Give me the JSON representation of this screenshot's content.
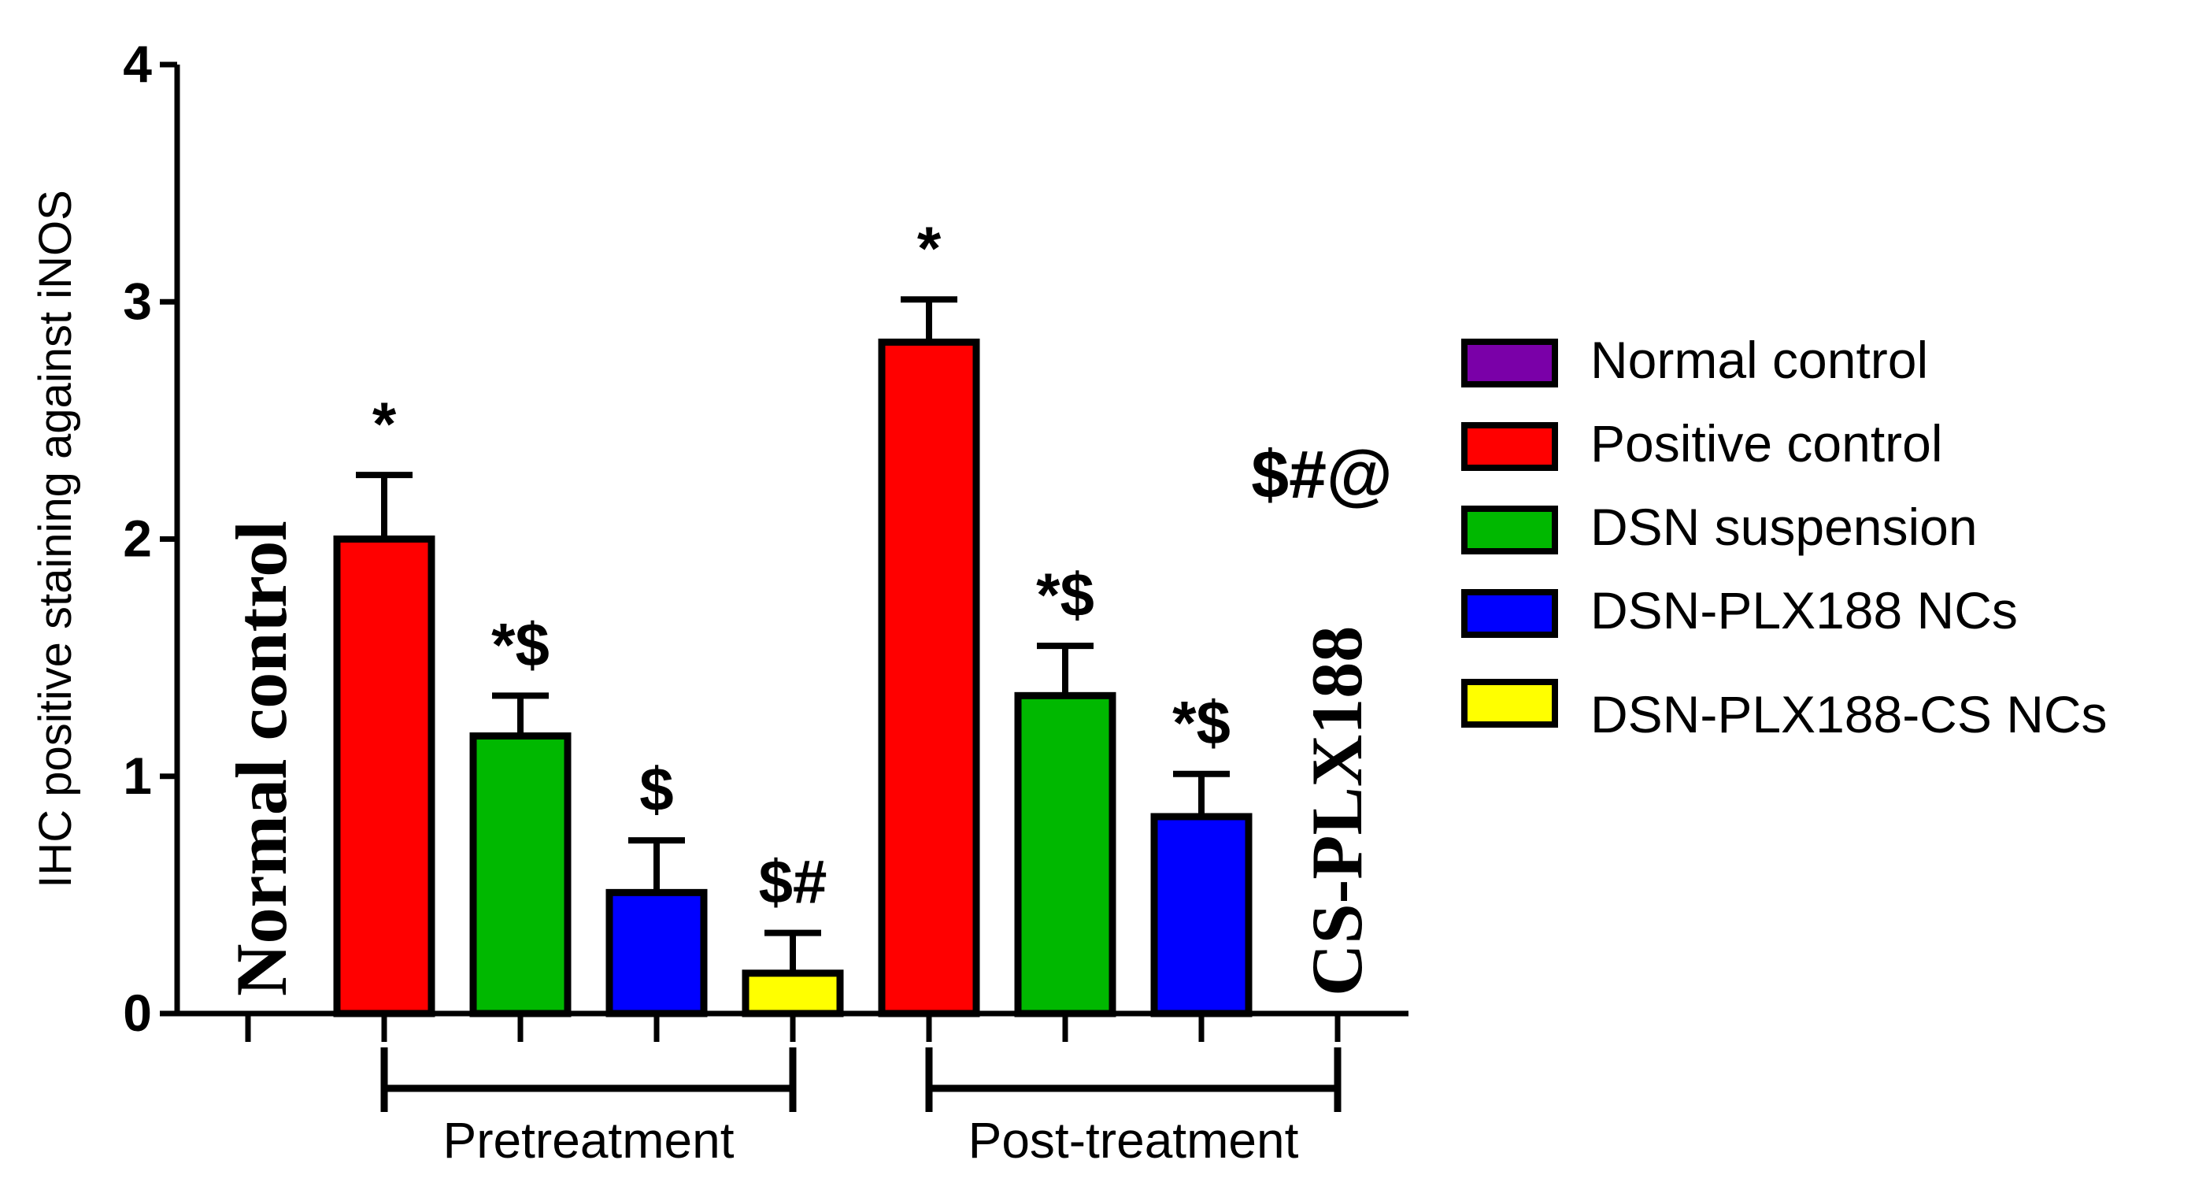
{
  "chart_data": {
    "type": "bar",
    "ylabel": "IHC positive staining against iNOS",
    "ylim": [
      0,
      4
    ],
    "yticks": [
      0,
      1,
      2,
      3,
      4
    ],
    "error_type": "SD",
    "bars": [
      {
        "group": "Pretreatment",
        "series": "Positive control",
        "value": 2.0,
        "error": 0.27,
        "annotation": "*"
      },
      {
        "group": "Pretreatment",
        "series": "DSN suspension",
        "value": 1.17,
        "error": 0.17,
        "annotation": "*$"
      },
      {
        "group": "Pretreatment",
        "series": "DSN-PLX188 NCs",
        "value": 0.51,
        "error": 0.22,
        "annotation": "$"
      },
      {
        "group": "Pretreatment",
        "series": "DSN-PLX188-CS NCs",
        "value": 0.17,
        "error": 0.17,
        "annotation": "$#"
      },
      {
        "group": "Post-treatment",
        "series": "Positive control",
        "value": 2.83,
        "error": 0.18,
        "annotation": "*"
      },
      {
        "group": "Post-treatment",
        "series": "DSN suspension",
        "value": 1.34,
        "error": 0.21,
        "annotation": "*$"
      },
      {
        "group": "Post-treatment",
        "series": "DSN-PLX188 NCs",
        "value": 0.83,
        "error": 0.18,
        "annotation": "*$"
      }
    ],
    "empty_bar_labels": [
      {
        "text": "Normal control"
      },
      {
        "text": "CS-PLX188"
      }
    ],
    "floating_annotation": "$#@",
    "groups": [
      {
        "name": "Pretreatment",
        "from_slot": 1,
        "to_slot": 4
      },
      {
        "name": "Post-treatment",
        "from_slot": 5,
        "to_slot": 8
      }
    ],
    "slot_count": 9,
    "legend": [
      {
        "label": "Normal control",
        "color": "#7a00a8"
      },
      {
        "label": "Positive control",
        "color": "#ff0000"
      },
      {
        "label": "DSN suspension",
        "color": "#00b800"
      },
      {
        "label": "DSN-PLX188 NCs",
        "color": "#0000ff"
      },
      {
        "label": "DSN-PLX188-CS NCs",
        "color": "#ffff00"
      }
    ],
    "legend_position": "right"
  }
}
